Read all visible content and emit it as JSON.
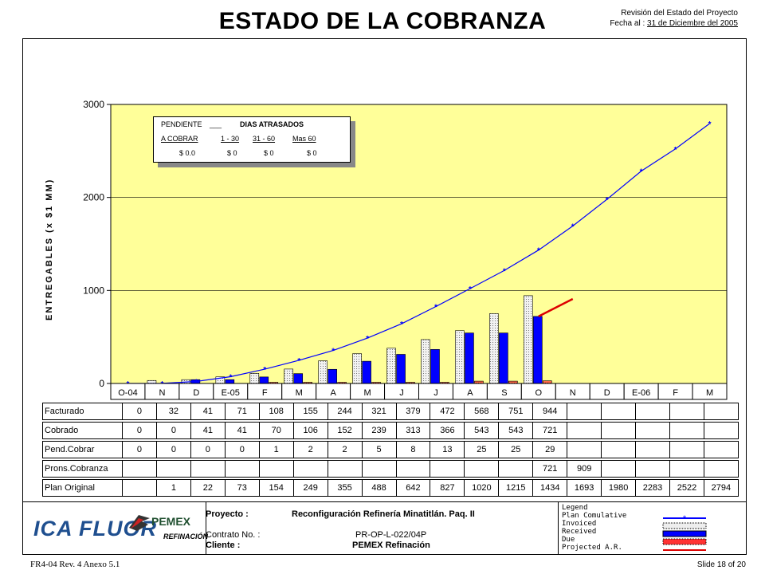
{
  "header": {
    "title": "ESTADO DE LA COBRANZA",
    "review": "Revisión del Estado del Proyecto",
    "date_label": "Fecha al :",
    "date_value": "31 de Diciembre del 2005"
  },
  "chart_data": {
    "type": "bar",
    "ylabel": "ENTREGABLES (x $1 MM)",
    "ylim": [
      0,
      3000
    ],
    "yticks": [
      "0",
      "1000",
      "2000",
      "3000"
    ],
    "categories": [
      "O-04",
      "N",
      "D",
      "E-05",
      "F",
      "M",
      "A",
      "M",
      "J",
      "J",
      "A",
      "S",
      "O",
      "N",
      "D",
      "E-06",
      "F",
      "M"
    ],
    "grid": true,
    "series": [
      {
        "name": "Invoiced",
        "kind": "bar",
        "color": "#e6e6e6",
        "values": [
          0,
          32,
          41,
          71,
          108,
          155,
          244,
          321,
          379,
          472,
          568,
          751,
          944,
          null,
          null,
          null,
          null,
          null
        ]
      },
      {
        "name": "Received",
        "kind": "bar",
        "color": "#0000ff",
        "values": [
          0,
          0,
          41,
          41,
          70,
          106,
          152,
          239,
          313,
          366,
          543,
          543,
          721,
          null,
          null,
          null,
          null,
          null
        ]
      },
      {
        "name": "Due",
        "kind": "bar",
        "color": "#ff3333",
        "values": [
          0,
          0,
          0,
          0,
          1,
          2,
          2,
          5,
          8,
          13,
          25,
          25,
          29,
          null,
          null,
          null,
          null,
          null
        ]
      },
      {
        "name": "Plan Comulative",
        "kind": "line",
        "color": "#0000ff",
        "values": [
          0,
          1,
          22,
          73,
          154,
          249,
          355,
          488,
          642,
          827,
          1020,
          1215,
          1434,
          1693,
          1980,
          2283,
          2522,
          2794
        ]
      },
      {
        "name": "Projected A.R.",
        "kind": "line",
        "color": "#dd0000",
        "values": [
          null,
          null,
          null,
          null,
          null,
          null,
          null,
          null,
          null,
          null,
          null,
          null,
          721,
          909,
          null,
          null,
          null,
          null
        ]
      }
    ],
    "pending_box": {
      "col1_header": "PENDIENTE",
      "col2_header": "DIAS ATRASADOS",
      "labels": [
        "A COBRAR",
        "1 - 30",
        "31 - 60",
        "Mas 60"
      ],
      "values": [
        "$ 0.0",
        "$ 0",
        "$ 0",
        "$ 0"
      ]
    }
  },
  "table": {
    "rows": [
      {
        "label": "Facturado",
        "cells": [
          "0",
          "32",
          "41",
          "71",
          "108",
          "155",
          "244",
          "321",
          "379",
          "472",
          "568",
          "751",
          "944",
          "",
          "",
          "",
          "",
          ""
        ]
      },
      {
        "label": "Cobrado",
        "cells": [
          "0",
          "0",
          "41",
          "41",
          "70",
          "106",
          "152",
          "239",
          "313",
          "366",
          "543",
          "543",
          "721",
          "",
          "",
          "",
          "",
          ""
        ]
      },
      {
        "label": "Pend.Cobrar",
        "cells": [
          "0",
          "0",
          "0",
          "0",
          "1",
          "2",
          "2",
          "5",
          "8",
          "13",
          "25",
          "25",
          "29",
          "",
          "",
          "",
          "",
          ""
        ]
      },
      {
        "label": "Prons.Cobranza",
        "cells": [
          "",
          "",
          "",
          "",
          "",
          "",
          "",
          "",
          "",
          "",
          "",
          "",
          "721",
          "909",
          "",
          "",
          "",
          ""
        ]
      },
      {
        "label": "Plan Original",
        "cells": [
          "",
          "1",
          "22",
          "73",
          "154",
          "249",
          "355",
          "488",
          "642",
          "827",
          "1020",
          "1215",
          "1434",
          "1693",
          "1980",
          "2283",
          "2522",
          "2794"
        ]
      }
    ]
  },
  "footer": {
    "logo_ica": "ICA FLUOR",
    "logo_pemex": "PEMEX",
    "logo_refinacion": "REFINACIÓN",
    "proyecto_label": "Proyecto :",
    "proyecto_value": "Reconfiguración Refinería Minatitlán.  Paq. II",
    "contrato_label": "Contrato No. :",
    "contrato_value": "PR-OP-L-022/04P",
    "cliente_label": "Cliente :",
    "cliente_value": "PEMEX Refinación",
    "legend_title": "Legend",
    "legend_items": [
      "Plan Comulative",
      "Invoiced",
      "Received",
      "Due",
      "Projected A.R."
    ],
    "form_code": "FR4-04 Rev. 4  Anexo 5.1",
    "slide": "Slide 18 of 20"
  }
}
